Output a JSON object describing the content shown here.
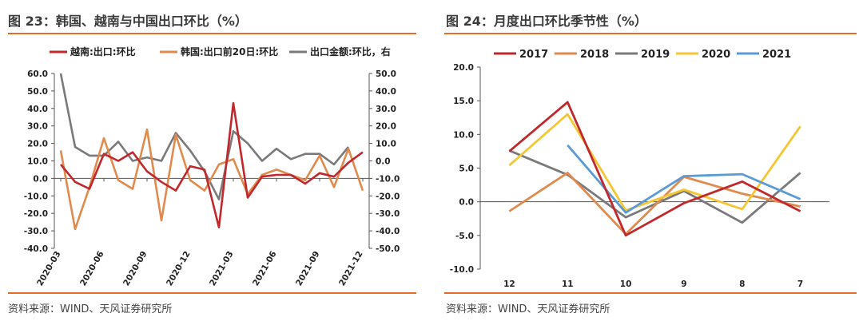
{
  "left_panel": {
    "title": "图 23：韩国、越南与中国出口环比（%）",
    "source": "资料来源：WIND、天风证券研究所"
  },
  "right_panel": {
    "title": "图 24：月度出口环比季节性（%）",
    "source": "资料来源：WIND、天风证券研究所"
  },
  "colors": {
    "accent": "#e26d2a"
  },
  "chart_data": [
    {
      "type": "line",
      "title": "",
      "x": [
        "2020-03",
        "2020-04",
        "2020-05",
        "2020-06",
        "2020-07",
        "2020-08",
        "2020-09",
        "2020-10",
        "2020-11",
        "2020-12",
        "2021-01",
        "2021-02",
        "2021-03",
        "2021-04",
        "2021-05",
        "2021-06",
        "2021-07",
        "2021-08",
        "2021-09",
        "2021-10",
        "2021-11",
        "2021-12"
      ],
      "x_tick_labels": [
        "2020-03",
        "2020-06",
        "2020-09",
        "2020-12",
        "2021-03",
        "2021-06",
        "2021-09",
        "2021-12"
      ],
      "y_left_ticks": [
        "60.0",
        "50.0",
        "40.0",
        "30.0",
        "20.0",
        "10.0",
        "0.0",
        "-10.0",
        "-20.0",
        "-30.0",
        "-40.0"
      ],
      "y_right_ticks": [
        "50.0",
        "40.0",
        "30.0",
        "20.0",
        "10.0",
        "0.0",
        "-10.0",
        "-20.0",
        "-30.0",
        "-40.0",
        "-50.0"
      ],
      "ylim_left": [
        -40,
        60
      ],
      "ylim_right": [
        -50,
        50
      ],
      "legend_position": "top",
      "series": [
        {
          "name": "越南:出口:环比",
          "color": "#c0282d",
          "axis": "left",
          "values": [
            8,
            -2,
            -6,
            14,
            10,
            15,
            4,
            -2,
            -7,
            7,
            5,
            -28,
            43,
            -11,
            1,
            2,
            2,
            -3,
            3,
            1,
            9,
            15
          ]
        },
        {
          "name": "韩国:出口前20日:环比",
          "color": "#e08a4e",
          "axis": "left",
          "values": [
            16,
            -29,
            -5,
            23,
            -1,
            -6,
            28,
            -24,
            25,
            -1,
            -7,
            8,
            11,
            -9,
            2,
            5,
            2,
            -1,
            13,
            -5,
            17,
            -7
          ]
        },
        {
          "name": "出口金额:环比，右",
          "color": "#7a7a7a",
          "axis": "right",
          "values": [
            50,
            8,
            3,
            3,
            11,
            0,
            2,
            0,
            16,
            6,
            -6,
            -22,
            17,
            10,
            0,
            7,
            1,
            4,
            4,
            -2,
            8,
            null
          ]
        }
      ]
    },
    {
      "type": "line",
      "title": "",
      "categories": [
        "12",
        "11",
        "10",
        "9",
        "8",
        "7"
      ],
      "y_ticks": [
        "20.0",
        "15.0",
        "10.0",
        "5.0",
        "0.0",
        "-5.0",
        "-10.0"
      ],
      "ylim": [
        -10,
        20
      ],
      "legend_position": "top",
      "series": [
        {
          "name": "2017",
          "color": "#c0282d",
          "values": [
            7.5,
            14.8,
            -5.0,
            -0.2,
            3.0,
            -1.4
          ]
        },
        {
          "name": "2018",
          "color": "#e08a4e",
          "values": [
            -1.4,
            4.3,
            -4.8,
            3.7,
            1.2,
            -0.7
          ]
        },
        {
          "name": "2019",
          "color": "#7a7a7a",
          "values": [
            7.6,
            4.0,
            -2.3,
            1.6,
            -3.1,
            4.3
          ]
        },
        {
          "name": "2020",
          "color": "#f4c632",
          "values": [
            5.4,
            13.0,
            -1.3,
            1.8,
            -1.1,
            11.2
          ]
        },
        {
          "name": "2021",
          "color": "#5b9bd5",
          "values": [
            null,
            8.4,
            -1.6,
            3.8,
            4.1,
            0.4
          ]
        }
      ]
    }
  ]
}
